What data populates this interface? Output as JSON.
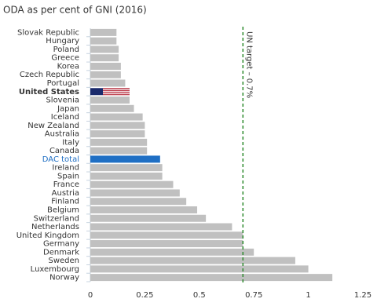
{
  "chart_data": {
    "type": "hbar",
    "title": "ODA as per cent of GNI (2016)",
    "categories": [
      "Slovak Republic",
      "Hungary",
      "Poland",
      "Greece",
      "Korea",
      "Czech Republic",
      "Portugal",
      "United States",
      "Slovenia",
      "Japan",
      "Iceland",
      "New Zealand",
      "Australia",
      "Italy",
      "Canada",
      "DAC total",
      "Ireland",
      "Spain",
      "France",
      "Austria",
      "Finland",
      "Belgium",
      "Switzerland",
      "Netherlands",
      "United Kingdom",
      "Germany",
      "Denmark",
      "Sweden",
      "Luxembourg",
      "Norway"
    ],
    "values": [
      0.12,
      0.12,
      0.13,
      0.13,
      0.14,
      0.14,
      0.16,
      0.18,
      0.18,
      0.2,
      0.24,
      0.25,
      0.25,
      0.26,
      0.26,
      0.32,
      0.33,
      0.33,
      0.38,
      0.41,
      0.44,
      0.49,
      0.53,
      0.65,
      0.7,
      0.7,
      0.75,
      0.94,
      1.0,
      1.11
    ],
    "color": "#c0c0c0",
    "highlights": [
      {
        "index": 7,
        "color": "url(#flag-us)",
        "bold": true
      },
      {
        "index": 15,
        "color": "#1f6fc4",
        "label_color": "#1f6fc4"
      }
    ],
    "xlim": [
      0,
      1.25
    ],
    "xticks": [
      0,
      0.25,
      0.5,
      0.75,
      1,
      1.25
    ],
    "target": {
      "value": 0.7,
      "label": "UN target – 0.7%",
      "color": "#2e8b2e"
    }
  }
}
